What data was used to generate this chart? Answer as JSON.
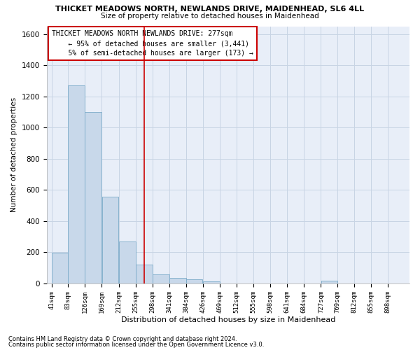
{
  "title1": "THICKET MEADOWS NORTH, NEWLANDS DRIVE, MAIDENHEAD, SL6 4LL",
  "title2": "Size of property relative to detached houses in Maidenhead",
  "xlabel": "Distribution of detached houses by size in Maidenhead",
  "ylabel": "Number of detached properties",
  "footnote1": "Contains HM Land Registry data © Crown copyright and database right 2024.",
  "footnote2": "Contains public sector information licensed under the Open Government Licence v3.0.",
  "annotation_line1": "THICKET MEADOWS NORTH NEWLANDS DRIVE: 277sqm",
  "annotation_line2": "← 95% of detached houses are smaller (3,441)",
  "annotation_line3": "5% of semi-detached houses are larger (173) →",
  "bar_color": "#c8d8ea",
  "bar_edge_color": "#7aaac8",
  "grid_color": "#c8d4e4",
  "background_color": "#e8eef8",
  "vline_color": "#cc0000",
  "annotation_box_color": "#ffffff",
  "annotation_box_edge_color": "#cc0000",
  "bins": [
    41,
    83,
    126,
    169,
    212,
    255,
    298,
    341,
    384,
    426,
    469,
    512,
    555,
    598,
    641,
    684,
    727,
    769,
    812,
    855,
    898
  ],
  "bar_heights": [
    198,
    1272,
    1100,
    555,
    270,
    120,
    60,
    35,
    25,
    15,
    0,
    0,
    0,
    0,
    0,
    0,
    18,
    0,
    0,
    0,
    0
  ],
  "property_size": 277,
  "ylim": [
    0,
    1650
  ],
  "yticks": [
    0,
    200,
    400,
    600,
    800,
    1000,
    1200,
    1400,
    1600
  ]
}
